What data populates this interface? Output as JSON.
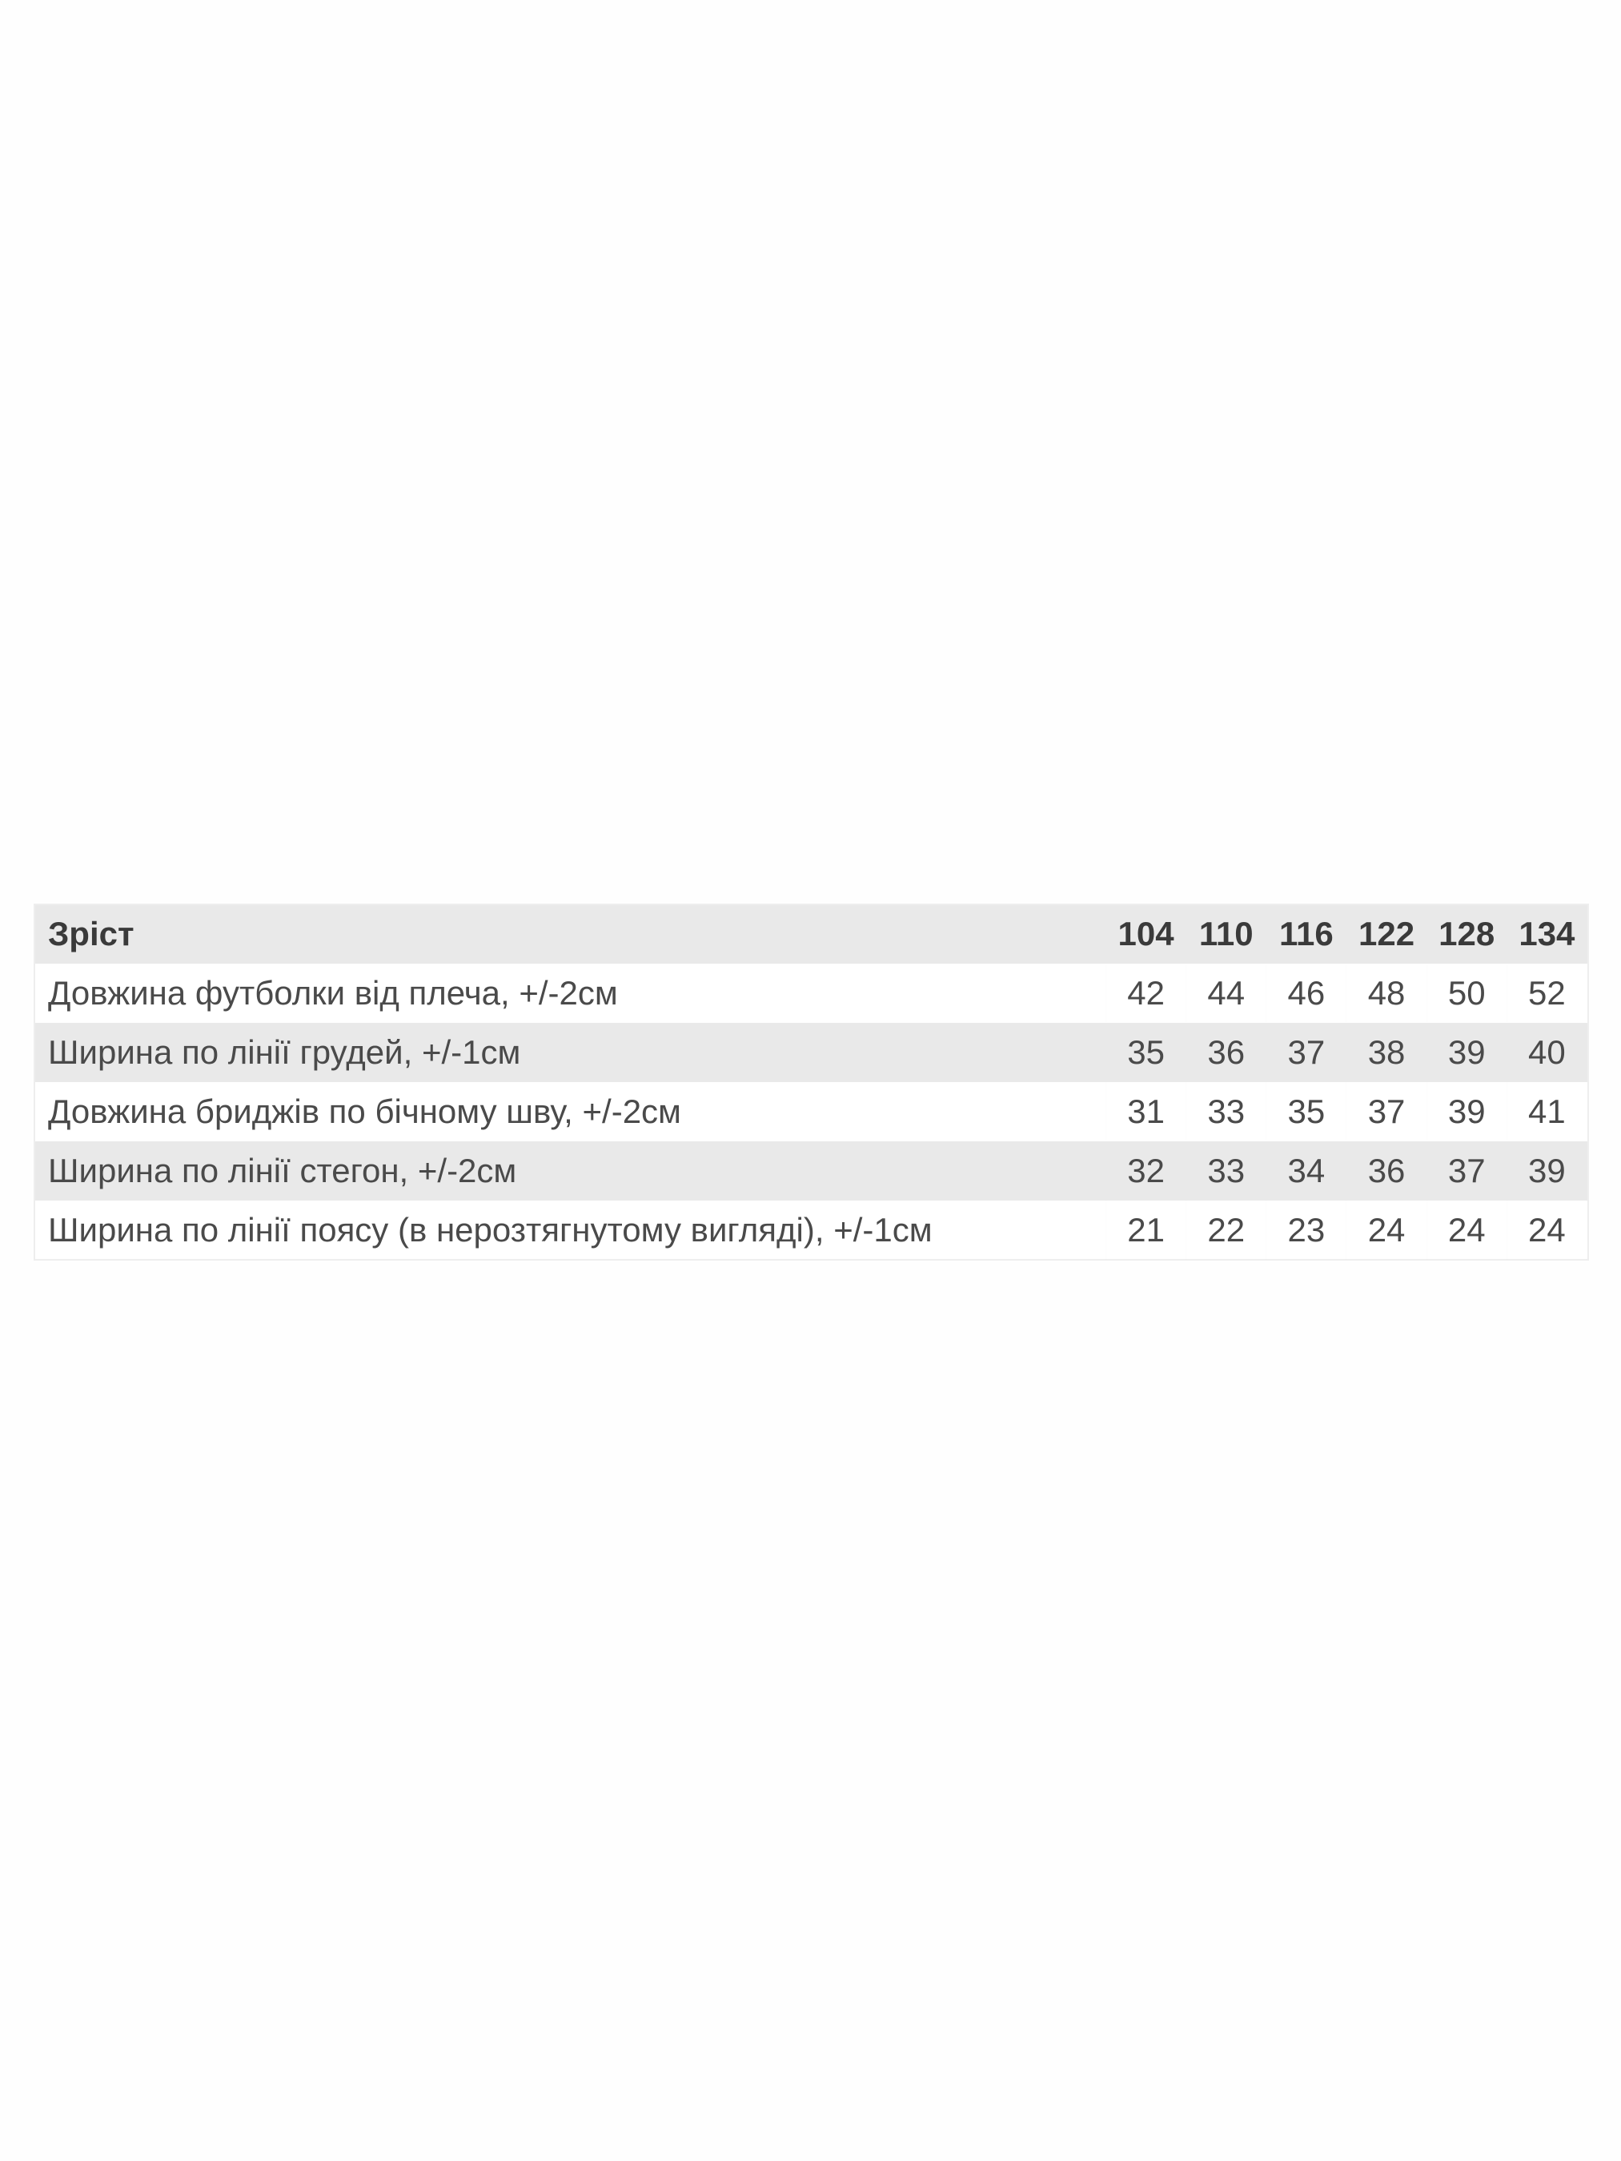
{
  "table": {
    "header": {
      "label": "Зріст",
      "sizes": [
        "104",
        "110",
        "116",
        "122",
        "128",
        "134"
      ]
    },
    "rows": [
      {
        "label": "Довжина футболки від плеча, +/-2см",
        "values": [
          "42",
          "44",
          "46",
          "48",
          "50",
          "52"
        ]
      },
      {
        "label": "Ширина по лінії грудей, +/-1см",
        "values": [
          "35",
          "36",
          "37",
          "38",
          "39",
          "40"
        ]
      },
      {
        "label": "Довжина бриджів по бічному шву, +/-2см",
        "values": [
          "31",
          "33",
          "35",
          "37",
          "39",
          "41"
        ]
      },
      {
        "label": "Ширина по лінії стегон, +/-2см",
        "values": [
          "32",
          "33",
          "34",
          "36",
          "37",
          "39"
        ]
      },
      {
        "label": "Ширина по лінії поясу (в нерозтягнутому вигляді), +/-1см",
        "values": [
          "21",
          "22",
          "23",
          "24",
          "24",
          "24"
        ]
      }
    ]
  },
  "colors": {
    "shade": "#e9e9e9",
    "text": "#4a4a4a"
  }
}
